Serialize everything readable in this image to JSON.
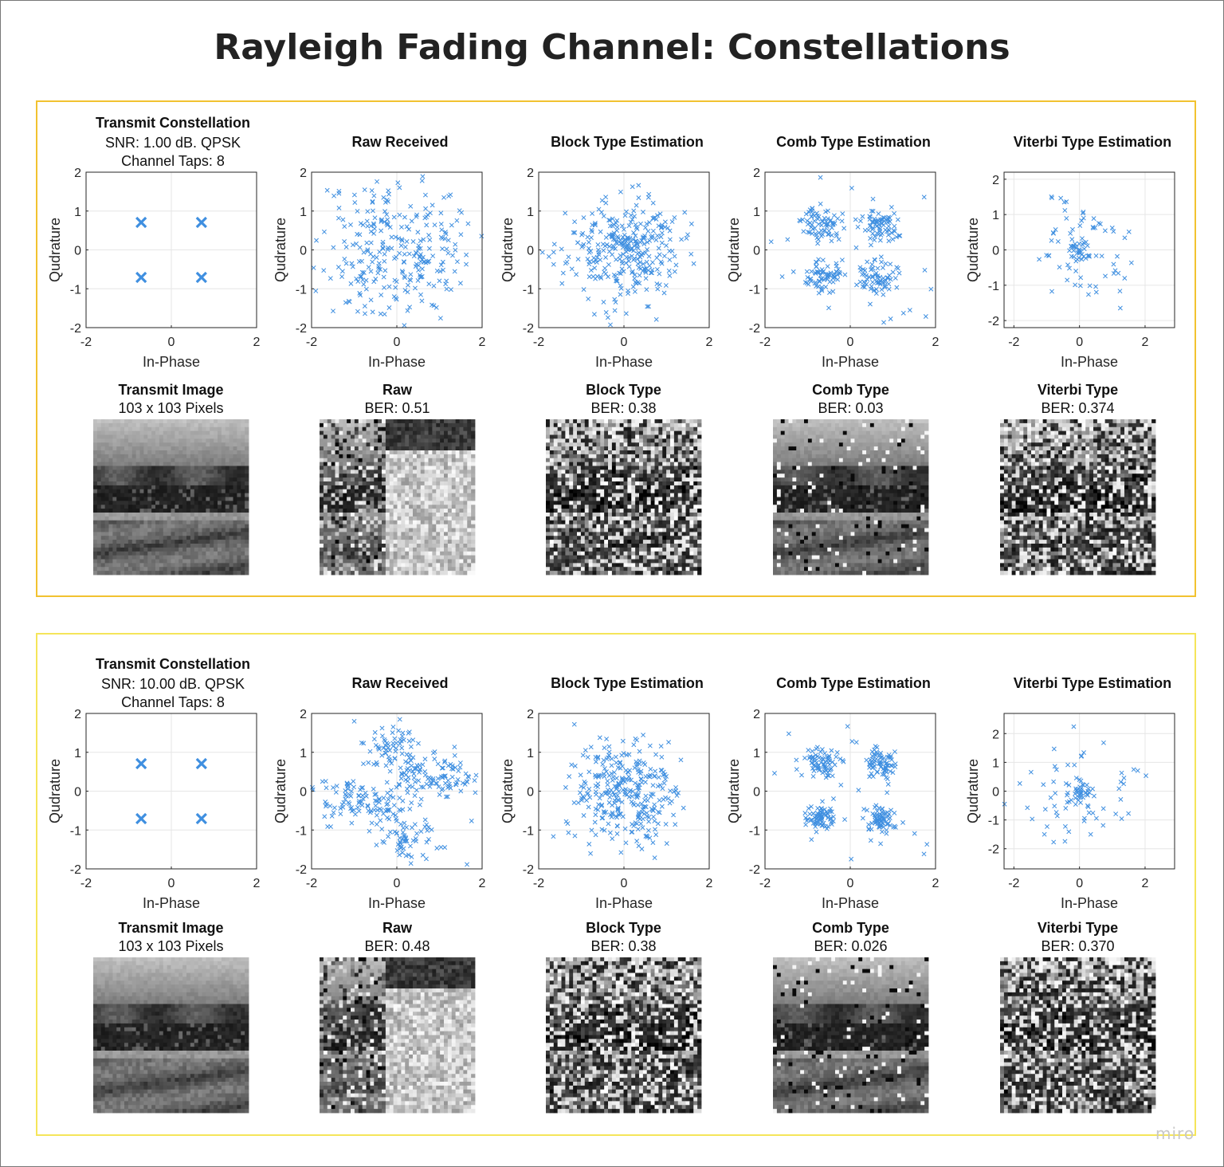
{
  "title": "Rayleigh Fading Channel: Constellations",
  "watermark": "miro",
  "colors": {
    "marker": "#3f8fe0",
    "top_border": "#f2c230",
    "bottom_border": "#f5e55a",
    "axis": "#262626",
    "grid": "#e6e6e6"
  },
  "rows": [
    {
      "transmit": {
        "title": "Transmit Constellation",
        "snr": "SNR: 1.00 dB. QPSK",
        "taps": "Channel Taps: 8"
      },
      "scatter_titles": [
        "Raw Received",
        "Block Type Estimation",
        "Comb Type Estimation",
        "Viterbi Type Estimation"
      ],
      "xlabel": "In-Phase",
      "ylabel": "Qudrature",
      "image_titles": [
        {
          "title": "Transmit Image",
          "sub": "103 x 103 Pixels"
        },
        {
          "title": "Raw",
          "sub": "BER: 0.51"
        },
        {
          "title": "Block Type",
          "sub": "BER: 0.38"
        },
        {
          "title": "Comb Type",
          "sub": "BER: 0.03"
        },
        {
          "title": "Viterbi Type",
          "sub": "BER: 0.374"
        }
      ]
    },
    {
      "transmit": {
        "title": "Transmit Constellation",
        "snr": "SNR: 10.00 dB. QPSK",
        "taps": "Channel Taps: 8"
      },
      "scatter_titles": [
        "Raw Received",
        "Block Type Estimation",
        "Comb Type Estimation",
        "Viterbi Type Estimation"
      ],
      "xlabel": "In-Phase",
      "ylabel": "Qudrature",
      "image_titles": [
        {
          "title": "Transmit Image",
          "sub": "103 x 103 Pixels"
        },
        {
          "title": "Raw",
          "sub": "BER: 0.48"
        },
        {
          "title": "Block Type",
          "sub": "BER: 0.38"
        },
        {
          "title": "Comb Type",
          "sub": "BER: 0.026"
        },
        {
          "title": "Viterbi Type",
          "sub": "BER: 0.370"
        }
      ]
    }
  ],
  "chart_data": [
    {
      "type": "scatter",
      "panel": "top-transmit",
      "title": "Transmit Constellation",
      "xlabel": "In-Phase",
      "ylabel": "Qudrature",
      "xlim": [
        -2,
        2
      ],
      "ylim": [
        -2,
        2
      ],
      "xticks": [
        -2,
        0,
        2
      ],
      "yticks": [
        -2,
        -1,
        0,
        1,
        2
      ],
      "grid": true,
      "points": [
        [
          -0.707,
          0.707
        ],
        [
          0.707,
          0.707
        ],
        [
          -0.707,
          -0.707
        ],
        [
          0.707,
          -0.707
        ]
      ],
      "marker_size": "large"
    },
    {
      "type": "scatter",
      "panel": "top-raw",
      "title": "Raw Received",
      "xlabel": "In-Phase",
      "ylabel": "Qudrature",
      "xlim": [
        -2,
        2
      ],
      "ylim": [
        -2,
        2
      ],
      "xticks": [
        -2,
        0,
        2
      ],
      "yticks": [
        -2,
        -1,
        0,
        1,
        2
      ],
      "grid": true,
      "cloud": {
        "n": 300,
        "spread": 0.95,
        "clip": 2.0,
        "seed": 11
      }
    },
    {
      "type": "scatter",
      "panel": "top-block",
      "title": "Block Type Estimation",
      "xlabel": "In-Phase",
      "ylabel": "Qudrature",
      "xlim": [
        -2,
        2
      ],
      "ylim": [
        -2,
        2
      ],
      "xticks": [
        -2,
        0,
        2
      ],
      "yticks": [
        -2,
        -1,
        0,
        1,
        2
      ],
      "grid": true,
      "cloud": {
        "n": 320,
        "spread": 0.65,
        "clip": 2.0,
        "seed": 23
      }
    },
    {
      "type": "scatter",
      "panel": "top-comb",
      "title": "Comb Type Estimation",
      "xlabel": "In-Phase",
      "ylabel": "Qudrature",
      "xlim": [
        -2,
        2
      ],
      "ylim": [
        -2,
        2
      ],
      "xticks": [
        -2,
        0,
        2
      ],
      "yticks": [
        -2,
        -1,
        0,
        1,
        2
      ],
      "grid": true,
      "clusters": {
        "centers": [
          [
            -0.65,
            0.65
          ],
          [
            0.65,
            0.65
          ],
          [
            -0.65,
            -0.65
          ],
          [
            0.65,
            -0.65
          ]
        ],
        "n_per": 70,
        "spread": 0.22,
        "outliers": 30,
        "seed": 37
      }
    },
    {
      "type": "scatter",
      "panel": "top-viterbi",
      "title": "Viterbi Type Estimation",
      "xlabel": "In-Phase",
      "ylabel": "Qudrature",
      "xlim": [
        -2.3,
        2.9
      ],
      "ylim": [
        -2.2,
        2.2
      ],
      "xticks": [
        -2,
        0,
        2
      ],
      "yticks": [
        -2,
        -1,
        0,
        1,
        2
      ],
      "grid": true,
      "cloud": {
        "n": 70,
        "spread": 0.8,
        "core_n": 25,
        "core_spread": 0.15,
        "clip": 2.8,
        "seed": 51
      }
    },
    {
      "type": "scatter",
      "panel": "bottom-transmit",
      "title": "Transmit Constellation",
      "xlabel": "In-Phase",
      "ylabel": "Qudrature",
      "xlim": [
        -2,
        2
      ],
      "ylim": [
        -2,
        2
      ],
      "xticks": [
        -2,
        0,
        2
      ],
      "yticks": [
        -2,
        -1,
        0,
        1,
        2
      ],
      "grid": true,
      "points": [
        [
          -0.707,
          0.707
        ],
        [
          0.707,
          0.707
        ],
        [
          -0.707,
          -0.707
        ],
        [
          0.707,
          -0.707
        ]
      ],
      "marker_size": "large"
    },
    {
      "type": "scatter",
      "panel": "bottom-raw",
      "title": "Raw Received",
      "xlabel": "In-Phase",
      "ylabel": "Qudrature",
      "xlim": [
        -2,
        2
      ],
      "ylim": [
        -2,
        2
      ],
      "xticks": [
        -2,
        0,
        2
      ],
      "yticks": [
        -2,
        -1,
        0,
        1,
        2
      ],
      "grid": true,
      "clusters": {
        "centers": [
          [
            -0.2,
            1.2
          ],
          [
            -1.2,
            -0.2
          ],
          [
            0.3,
            -1.2
          ],
          [
            1.2,
            0.3
          ],
          [
            -0.4,
            -0.4
          ],
          [
            0.4,
            0.4
          ]
        ],
        "n_per": 55,
        "spread": 0.3,
        "outliers": 20,
        "seed": 63
      }
    },
    {
      "type": "scatter",
      "panel": "bottom-block",
      "title": "Block Type Estimation",
      "xlabel": "In-Phase",
      "ylabel": "Qudrature",
      "xlim": [
        -2,
        2
      ],
      "ylim": [
        -2,
        2
      ],
      "xticks": [
        -2,
        0,
        2
      ],
      "yticks": [
        -2,
        -1,
        0,
        1,
        2
      ],
      "grid": true,
      "cloud": {
        "n": 320,
        "spread": 0.65,
        "clip": 2.0,
        "seed": 79
      }
    },
    {
      "type": "scatter",
      "panel": "bottom-comb",
      "title": "Comb Type Estimation",
      "xlabel": "In-Phase",
      "ylabel": "Qudrature",
      "xlim": [
        -2,
        2
      ],
      "ylim": [
        -2,
        2
      ],
      "xticks": [
        -2,
        0,
        2
      ],
      "yticks": [
        -2,
        -1,
        0,
        1,
        2
      ],
      "grid": true,
      "clusters": {
        "centers": [
          [
            -0.7,
            0.7
          ],
          [
            0.7,
            0.7
          ],
          [
            -0.7,
            -0.7
          ],
          [
            0.7,
            -0.7
          ]
        ],
        "n_per": 70,
        "spread": 0.18,
        "outliers": 25,
        "seed": 91
      }
    },
    {
      "type": "scatter",
      "panel": "bottom-viterbi",
      "title": "Viterbi Type Estimation",
      "xlabel": "In-Phase",
      "ylabel": "Qudrature",
      "xlim": [
        -2.3,
        2.9
      ],
      "ylim": [
        -2.7,
        2.7
      ],
      "xticks": [
        -2,
        0,
        2
      ],
      "yticks": [
        -2,
        -1,
        0,
        1,
        2
      ],
      "grid": true,
      "cloud": {
        "n": 70,
        "spread": 0.85,
        "core_n": 25,
        "core_spread": 0.15,
        "clip": 2.8,
        "seed": 103
      }
    }
  ]
}
